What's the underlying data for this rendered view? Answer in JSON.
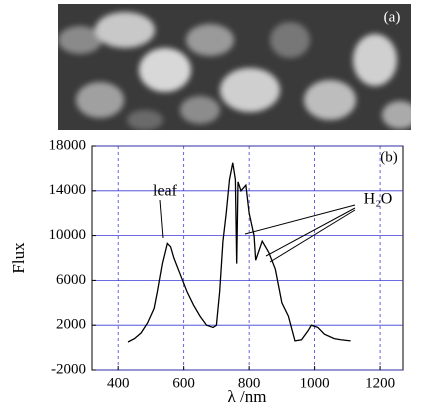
{
  "image": {
    "label": "(a)"
  },
  "chart_data": {
    "type": "line",
    "panel_label": "(b)",
    "x_label": "λ /nm",
    "y_label": "Flux",
    "annotations": [
      "leaf",
      "H₂O"
    ],
    "x": [
      430,
      450,
      470,
      490,
      510,
      520,
      535,
      550,
      560,
      570,
      590,
      610,
      630,
      650,
      670,
      690,
      700,
      710,
      720,
      730,
      740,
      750,
      758,
      762,
      766,
      775,
      790,
      800,
      815,
      820,
      840,
      860,
      880,
      900,
      920,
      940,
      960,
      980,
      990,
      1010,
      1030,
      1060,
      1080,
      1110
    ],
    "series": [
      {
        "name": "Flux",
        "color": "#000000",
        "values": [
          500,
          800,
          1300,
          2200,
          3500,
          5000,
          7500,
          9300,
          9000,
          8000,
          6500,
          5000,
          3800,
          2800,
          2000,
          1800,
          2000,
          5000,
          9500,
          12000,
          15000,
          16500,
          15000,
          7500,
          14800,
          14000,
          14500,
          12000,
          10000,
          7800,
          9500,
          8500,
          7000,
          4000,
          2800,
          600,
          700,
          1500,
          2000,
          1800,
          1200,
          800,
          700,
          600
        ]
      }
    ],
    "xlim": [
      320,
      1270
    ],
    "ylim": [
      -2000,
      18000
    ],
    "xticks": [
      400,
      600,
      800,
      1000,
      1200
    ],
    "yticks": [
      -2000,
      2000,
      6000,
      10000,
      14000,
      18000
    ],
    "grid": true
  }
}
